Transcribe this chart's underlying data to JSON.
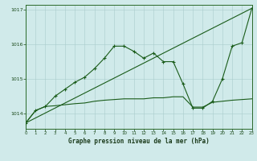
{
  "title": "Graphe pression niveau de la mer (hPa)",
  "bg": "#d0eaea",
  "grid_color": "#aacccc",
  "lc": "#1a5c1a",
  "xlim": [
    0,
    23
  ],
  "ylim": [
    1013.55,
    1017.15
  ],
  "yticks": [
    1014,
    1015,
    1016,
    1017
  ],
  "xticks": [
    0,
    1,
    2,
    3,
    4,
    5,
    6,
    7,
    8,
    9,
    10,
    11,
    12,
    13,
    14,
    15,
    16,
    17,
    18,
    19,
    20,
    21,
    22,
    23
  ],
  "s1x": [
    0,
    1,
    2,
    3,
    4,
    5,
    6,
    7,
    8,
    9,
    10,
    11,
    12,
    13,
    14,
    15,
    16,
    17,
    18,
    19,
    20,
    21,
    22,
    23
  ],
  "s1y": [
    1013.72,
    1014.08,
    1014.2,
    1014.5,
    1014.7,
    1014.9,
    1015.05,
    1015.3,
    1015.6,
    1015.95,
    1015.95,
    1015.8,
    1015.6,
    1015.75,
    1015.5,
    1015.5,
    1014.85,
    1014.15,
    1014.15,
    1014.35,
    1015.0,
    1015.95,
    1016.05,
    1017.05
  ],
  "s2x": [
    0,
    23
  ],
  "s2y": [
    1013.72,
    1017.05
  ],
  "s3x": [
    0,
    1,
    2,
    3,
    4,
    5,
    6,
    7,
    8,
    9,
    10,
    11,
    12,
    13,
    14,
    15,
    16,
    17,
    18,
    19,
    20,
    21,
    22,
    23
  ],
  "s3y": [
    1013.72,
    1014.08,
    1014.2,
    1014.22,
    1014.25,
    1014.28,
    1014.3,
    1014.35,
    1014.38,
    1014.4,
    1014.42,
    1014.42,
    1014.42,
    1014.45,
    1014.45,
    1014.48,
    1014.48,
    1014.18,
    1014.18,
    1014.32,
    1014.35,
    1014.38,
    1014.4,
    1014.42
  ]
}
